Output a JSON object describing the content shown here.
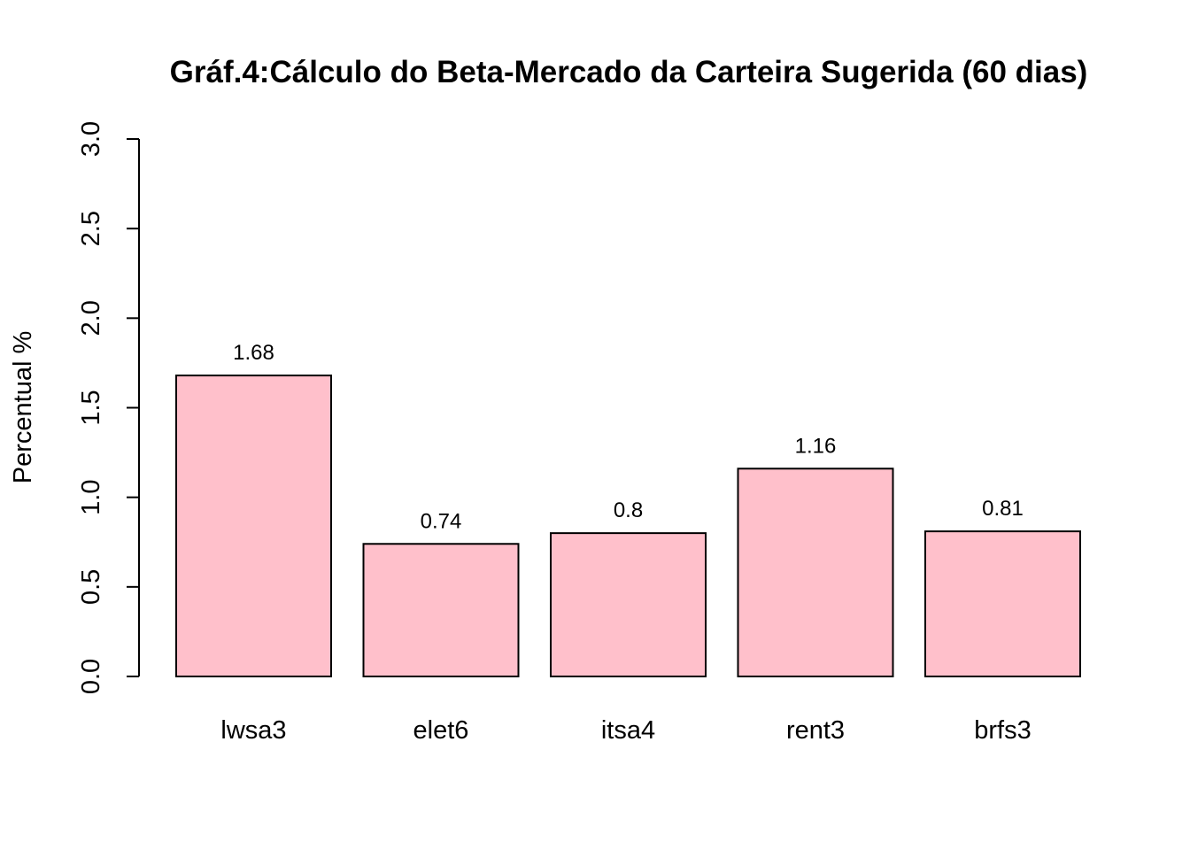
{
  "chart_data": {
    "type": "bar",
    "title": "Gráf.4:Cálculo do Beta-Mercado da Carteira Sugerida (60 dias)",
    "xlabel": "",
    "ylabel": "Percentual %",
    "categories": [
      "lwsa3",
      "elet6",
      "itsa4",
      "rent3",
      "brfs3"
    ],
    "values": [
      1.68,
      0.74,
      0.8,
      1.16,
      0.81
    ],
    "value_labels": [
      "1.68",
      "0.74",
      "0.8",
      "1.16",
      "0.81"
    ],
    "ylim": [
      0,
      3
    ],
    "yticks": [
      0,
      0.5,
      1,
      1.5,
      2,
      2.5,
      3
    ],
    "ytick_labels": [
      "0.0",
      "0.5",
      "1.0",
      "1.5",
      "2.0",
      "2.5",
      "3.0"
    ],
    "grid": false,
    "bar_color": "#FFC0CB",
    "bar_border_color": "#000000"
  }
}
